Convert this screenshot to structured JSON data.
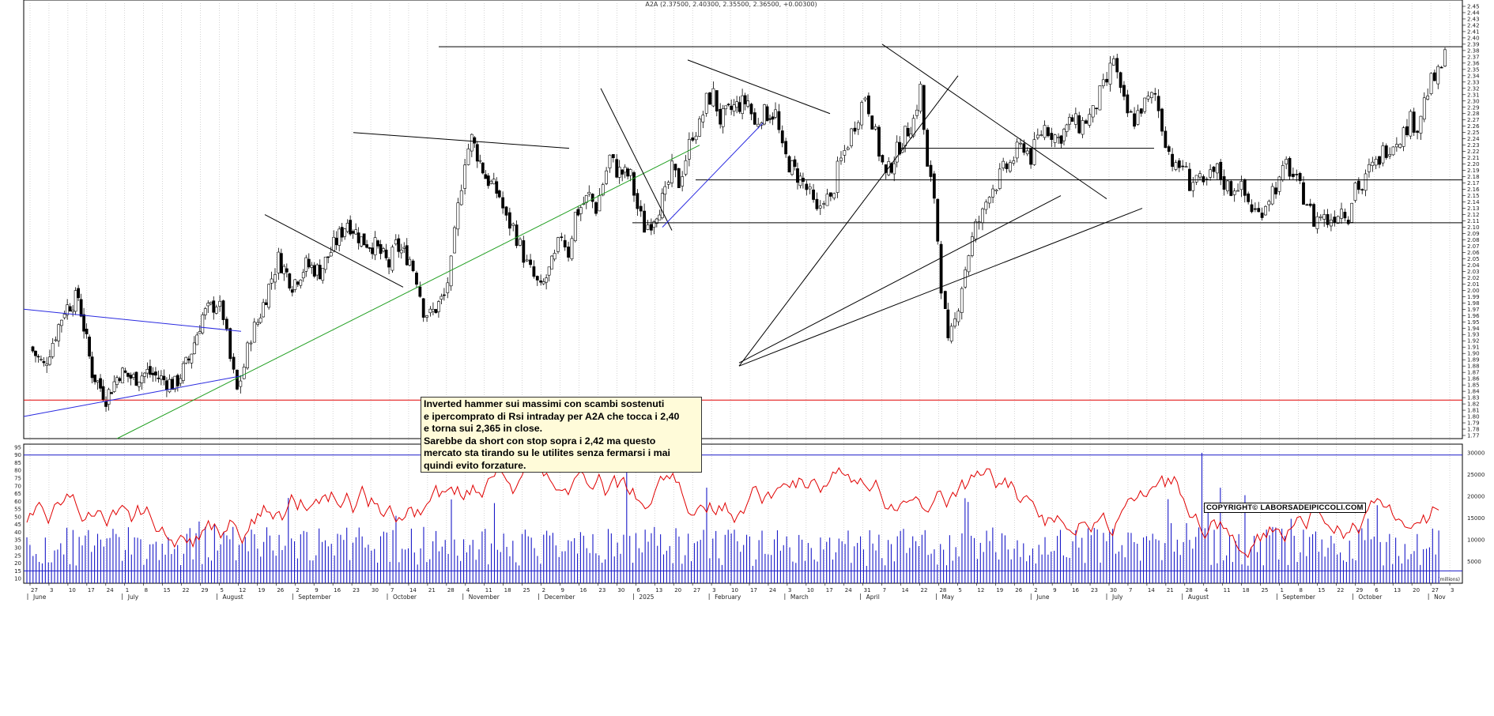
{
  "chart_data": {
    "type": "candlestick",
    "title": "A2A (2.37500, 2.40300, 2.35500, 2.36500, +0.00300)",
    "price_panel": {
      "ylim": [
        1.765,
        2.455
      ],
      "y_ticks": [
        "1.77",
        "1.78",
        "1.79",
        "1.80",
        "1.81",
        "1.82",
        "1.83",
        "1.84",
        "1.85",
        "1.86",
        "1.87",
        "1.88",
        "1.89",
        "1.90",
        "1.91",
        "1.92",
        "1.93",
        "1.94",
        "1.95",
        "1.96",
        "1.97",
        "1.98",
        "1.99",
        "2.00",
        "2.01",
        "2.02",
        "2.03",
        "2.04",
        "2.05",
        "2.06",
        "2.07",
        "2.08",
        "2.09",
        "2.10",
        "2.11",
        "2.12",
        "2.13",
        "2.14",
        "2.15",
        "2.16",
        "2.17",
        "2.18",
        "2.19",
        "2.20",
        "2.21",
        "2.22",
        "2.23",
        "2.24",
        "2.25",
        "2.26",
        "2.27",
        "2.28",
        "2.29",
        "2.30",
        "2.31",
        "2.32",
        "2.33",
        "2.34",
        "2.35",
        "2.36",
        "2.37",
        "2.38",
        "2.39",
        "2.40",
        "2.41",
        "2.42",
        "2.43",
        "2.44",
        "2.45"
      ],
      "close_path": [
        [
          0,
          1.91
        ],
        [
          10,
          1.88
        ],
        [
          25,
          1.97
        ],
        [
          35,
          1.99
        ],
        [
          45,
          1.87
        ],
        [
          55,
          1.83
        ],
        [
          65,
          1.87
        ],
        [
          75,
          1.86
        ],
        [
          85,
          1.87
        ],
        [
          95,
          1.86
        ],
        [
          105,
          1.85
        ],
        [
          115,
          1.89
        ],
        [
          125,
          1.96
        ],
        [
          135,
          1.98
        ],
        [
          140,
          1.96
        ],
        [
          145,
          1.89
        ],
        [
          150,
          1.84
        ],
        [
          155,
          1.88
        ],
        [
          160,
          1.93
        ],
        [
          165,
          1.95
        ],
        [
          175,
          2.02
        ],
        [
          180,
          2.05
        ],
        [
          190,
          2.01
        ],
        [
          200,
          2.04
        ],
        [
          210,
          2.03
        ],
        [
          220,
          2.07
        ],
        [
          230,
          2.11
        ],
        [
          240,
          2.08
        ],
        [
          250,
          2.07
        ],
        [
          260,
          2.04
        ],
        [
          265,
          2.07
        ],
        [
          275,
          2.05
        ],
        [
          280,
          2.02
        ],
        [
          285,
          1.97
        ],
        [
          290,
          1.96
        ],
        [
          300,
          1.99
        ],
        [
          305,
          2.04
        ],
        [
          310,
          2.13
        ],
        [
          315,
          2.21
        ],
        [
          320,
          2.24
        ],
        [
          330,
          2.18
        ],
        [
          340,
          2.15
        ],
        [
          345,
          2.11
        ],
        [
          350,
          2.1
        ],
        [
          355,
          2.07
        ],
        [
          360,
          2.04
        ],
        [
          365,
          2.02
        ],
        [
          370,
          2.0
        ],
        [
          380,
          2.05
        ],
        [
          385,
          2.09
        ],
        [
          390,
          2.06
        ],
        [
          395,
          2.12
        ],
        [
          405,
          2.15
        ],
        [
          410,
          2.13
        ],
        [
          415,
          2.17
        ],
        [
          420,
          2.21
        ],
        [
          425,
          2.19
        ],
        [
          435,
          2.18
        ],
        [
          440,
          2.13
        ],
        [
          445,
          2.1
        ],
        [
          450,
          2.11
        ],
        [
          460,
          2.15
        ],
        [
          465,
          2.19
        ],
        [
          470,
          2.17
        ],
        [
          475,
          2.21
        ],
        [
          480,
          2.25
        ],
        [
          485,
          2.26
        ],
        [
          490,
          2.3
        ],
        [
          495,
          2.31
        ],
        [
          500,
          2.27
        ],
        [
          510,
          2.29
        ],
        [
          520,
          2.3
        ],
        [
          525,
          2.26
        ],
        [
          530,
          2.28
        ],
        [
          540,
          2.28
        ],
        [
          545,
          2.22
        ],
        [
          550,
          2.2
        ],
        [
          560,
          2.17
        ],
        [
          565,
          2.15
        ],
        [
          570,
          2.12
        ],
        [
          575,
          2.15
        ],
        [
          580,
          2.14
        ],
        [
          585,
          2.19
        ],
        [
          590,
          2.22
        ],
        [
          595,
          2.25
        ],
        [
          600,
          2.28
        ],
        [
          605,
          2.31
        ],
        [
          610,
          2.27
        ],
        [
          615,
          2.22
        ],
        [
          620,
          2.18
        ],
        [
          630,
          2.23
        ],
        [
          640,
          2.27
        ],
        [
          645,
          2.32
        ],
        [
          650,
          2.19
        ],
        [
          655,
          2.15
        ],
        [
          660,
          2.01
        ],
        [
          663,
          1.96
        ],
        [
          665,
          1.91
        ],
        [
          670,
          1.95
        ],
        [
          675,
          2.01
        ],
        [
          680,
          2.06
        ],
        [
          685,
          2.1
        ],
        [
          690,
          2.12
        ],
        [
          695,
          2.16
        ],
        [
          700,
          2.17
        ],
        [
          705,
          2.19
        ],
        [
          710,
          2.2
        ],
        [
          715,
          2.22
        ],
        [
          720,
          2.23
        ],
        [
          725,
          2.21
        ],
        [
          730,
          2.24
        ],
        [
          735,
          2.26
        ],
        [
          740,
          2.25
        ],
        [
          745,
          2.24
        ],
        [
          755,
          2.27
        ],
        [
          760,
          2.26
        ],
        [
          765,
          2.27
        ],
        [
          770,
          2.28
        ],
        [
          775,
          2.31
        ],
        [
          780,
          2.33
        ],
        [
          785,
          2.37
        ],
        [
          790,
          2.31
        ],
        [
          795,
          2.28
        ],
        [
          800,
          2.27
        ],
        [
          805,
          2.29
        ],
        [
          810,
          2.3
        ],
        [
          815,
          2.31
        ],
        [
          820,
          2.26
        ],
        [
          825,
          2.22
        ],
        [
          830,
          2.19
        ],
        [
          835,
          2.2
        ],
        [
          840,
          2.17
        ],
        [
          845,
          2.18
        ],
        [
          850,
          2.16
        ],
        [
          855,
          2.18
        ],
        [
          860,
          2.19
        ],
        [
          865,
          2.17
        ],
        [
          870,
          2.16
        ],
        [
          875,
          2.17
        ],
        [
          880,
          2.15
        ],
        [
          885,
          2.13
        ],
        [
          890,
          2.12
        ],
        [
          895,
          2.14
        ],
        [
          900,
          2.16
        ],
        [
          905,
          2.17
        ],
        [
          910,
          2.2
        ],
        [
          915,
          2.18
        ],
        [
          920,
          2.16
        ],
        [
          925,
          2.14
        ],
        [
          930,
          2.11
        ],
        [
          935,
          2.12
        ],
        [
          940,
          2.11
        ],
        [
          945,
          2.12
        ],
        [
          950,
          2.13
        ],
        [
          955,
          2.12
        ],
        [
          960,
          2.17
        ],
        [
          965,
          2.16
        ],
        [
          970,
          2.19
        ],
        [
          975,
          2.2
        ],
        [
          980,
          2.22
        ],
        [
          985,
          2.23
        ],
        [
          990,
          2.24
        ],
        [
          995,
          2.25
        ],
        [
          1000,
          2.27
        ],
        [
          1005,
          2.26
        ],
        [
          1010,
          2.3
        ],
        [
          1015,
          2.33
        ],
        [
          1020,
          2.34
        ],
        [
          1025,
          2.37
        ]
      ],
      "horizontal_lines": [
        {
          "level": 2.386,
          "color": "#000000"
        },
        {
          "level": 2.175,
          "color": "#000000"
        },
        {
          "level": 2.225,
          "color": "#000000"
        },
        {
          "level": 2.107,
          "color": "#000000"
        },
        {
          "level": 1.826,
          "color": "#e00000"
        }
      ]
    },
    "indicator_panel": {
      "rsi_ticks": [
        "10",
        "15",
        "20",
        "25",
        "30",
        "35",
        "40",
        "45",
        "50",
        "55",
        "60",
        "65",
        "70",
        "75",
        "80",
        "85",
        "90",
        "95"
      ],
      "rsi_ylim": [
        7,
        97
      ],
      "rsi_levels": [
        15,
        90
      ],
      "volume_ticks": [
        "5000",
        "10000",
        "15000",
        "20000",
        "25000",
        "30000"
      ],
      "volume_ylim": [
        0,
        32000
      ],
      "rsi_color": "#e00000",
      "volume_color": "#1a1ac8",
      "volume_label": "(millions)"
    },
    "x_axis": {
      "day_ticks": [
        "27",
        "3",
        "10",
        "17",
        "24",
        "1",
        "8",
        "15",
        "22",
        "29",
        "5",
        "12",
        "19",
        "26",
        "2",
        "9",
        "16",
        "23",
        "30",
        "7",
        "14",
        "21",
        "28",
        "4",
        "11",
        "18",
        "25",
        "2",
        "9",
        "16",
        "23",
        "30",
        "6",
        "13",
        "20",
        "27",
        "3",
        "10",
        "17",
        "24",
        "3",
        "10",
        "17",
        "24",
        "31",
        "7",
        "14",
        "22",
        "28",
        "5",
        "12",
        "19",
        "26",
        "2",
        "9",
        "16",
        "23",
        "30",
        "7",
        "14",
        "21",
        "28",
        "4",
        "11",
        "18",
        "25",
        "1",
        "8",
        "15",
        "22",
        "29",
        "6",
        "13",
        "20",
        "27",
        "3"
      ],
      "months": [
        "June",
        "July",
        "August",
        "September",
        "October",
        "November",
        "December",
        "2025",
        "February",
        "March",
        "April",
        "May",
        "June",
        "July",
        "August",
        "September",
        "October",
        "Nov"
      ]
    },
    "annotation": {
      "lines": [
        "Inverted hammer sui massimi con scambi sostenuti",
        "e ipercomprato di Rsi intraday per A2A che tocca i 2,40",
        "e torna sui 2,365 in close.",
        "Sarebbe da short con stop sopra i 2,42 ma questo",
        "mercato sta tirando su le utilites senza fermarsi i mai",
        "quindi evito forzature."
      ]
    },
    "copyright": "COPYRIGHT© LABORSADEIPICCOLI.COM"
  }
}
